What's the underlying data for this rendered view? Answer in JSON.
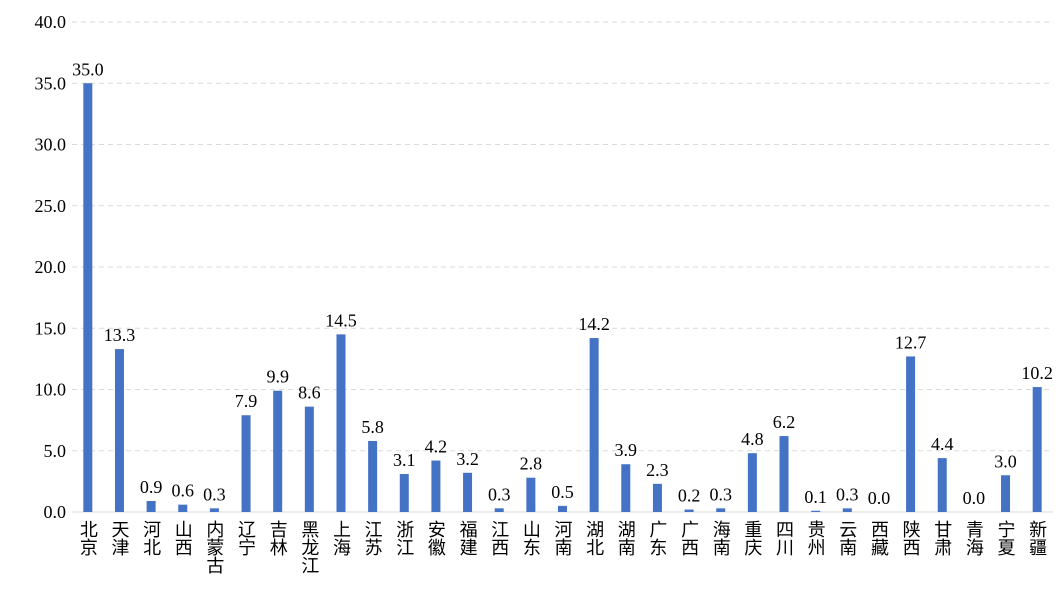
{
  "chart_data": {
    "type": "bar",
    "categories": [
      "北京",
      "天津",
      "河北",
      "山西",
      "内蒙古",
      "辽宁",
      "吉林",
      "黑龙江",
      "上海",
      "江苏",
      "浙江",
      "安徽",
      "福建",
      "江西",
      "山东",
      "河南",
      "湖北",
      "湖南",
      "广东",
      "广西",
      "海南",
      "重庆",
      "四川",
      "贵州",
      "云南",
      "西藏",
      "陕西",
      "甘肃",
      "青海",
      "宁夏",
      "新疆"
    ],
    "values": [
      35.0,
      13.3,
      0.9,
      0.6,
      0.3,
      7.9,
      9.9,
      8.6,
      14.5,
      5.8,
      3.1,
      4.2,
      3.2,
      0.3,
      2.8,
      0.5,
      14.2,
      3.9,
      2.3,
      0.2,
      0.3,
      4.8,
      6.2,
      0.1,
      0.3,
      0.0,
      12.7,
      4.4,
      0.0,
      3.0,
      10.2
    ],
    "value_labels": [
      "35.0",
      "13.3",
      "0.9",
      "0.6",
      "0.3",
      "7.9",
      "9.9",
      "8.6",
      "14.5",
      "5.8",
      "3.1",
      "4.2",
      "3.2",
      "0.3",
      "2.8",
      "0.5",
      "14.2",
      "3.9",
      "2.3",
      "0.2",
      "0.3",
      "4.8",
      "6.2",
      "0.1",
      "0.3",
      "0.0",
      "12.7",
      "4.4",
      "0.0",
      "3.0",
      "10.2"
    ],
    "color": "#4472c4",
    "ylim": [
      0,
      40
    ],
    "yticks": [
      {
        "value": 0,
        "label": "0.0"
      },
      {
        "value": 5,
        "label": "5.0"
      },
      {
        "value": 10,
        "label": "10.0"
      },
      {
        "value": 15,
        "label": "15.0"
      },
      {
        "value": 20,
        "label": "20.0"
      },
      {
        "value": 25,
        "label": "25.0"
      },
      {
        "value": 30,
        "label": "30.0"
      },
      {
        "value": 35,
        "label": "35.0"
      },
      {
        "value": 40,
        "label": "40.0"
      }
    ],
    "grid": true
  }
}
